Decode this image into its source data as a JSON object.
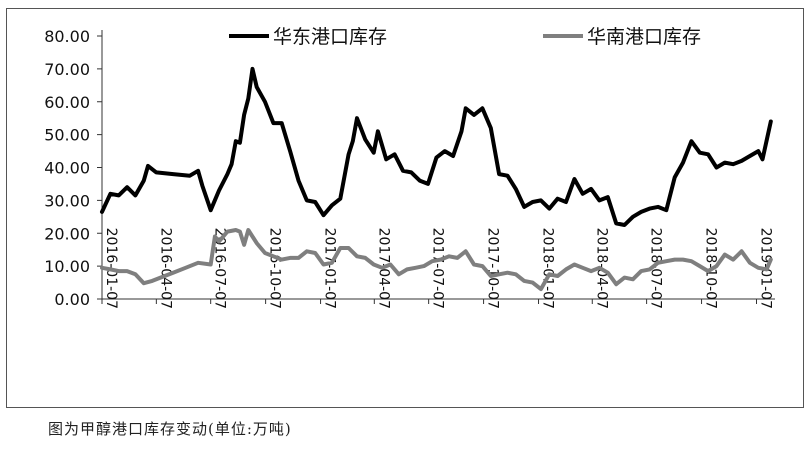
{
  "caption": "图为甲醇港口库存变动(单位:万吨)",
  "chart_data": {
    "type": "line",
    "title": "",
    "xlabel": "",
    "ylabel": "",
    "ylim": [
      0,
      80
    ],
    "y_ticks": [
      "0.00",
      "10.00",
      "20.00",
      "30.00",
      "40.00",
      "50.00",
      "60.00",
      "70.00",
      "80.00"
    ],
    "x_ticks": [
      "2016-01-07",
      "2016-04-07",
      "2016-07-07",
      "2016-10-07",
      "2017-01-07",
      "2017-04-07",
      "2017-07-07",
      "2017-10-07",
      "2018-01-07",
      "2018-04-07",
      "2018-07-07",
      "2018-10-07",
      "2019-01-07"
    ],
    "x_range": [
      "2016-01-07",
      "2019-02-07"
    ],
    "grid": false,
    "legend_position": "top",
    "series": [
      {
        "name": "华东港口库存",
        "color": "#000000",
        "points": [
          [
            "2016-01-07",
            26.5
          ],
          [
            "2016-01-21",
            32.0
          ],
          [
            "2016-02-04",
            31.5
          ],
          [
            "2016-02-18",
            34.0
          ],
          [
            "2016-03-03",
            31.5
          ],
          [
            "2016-03-17",
            36.0
          ],
          [
            "2016-03-24",
            40.5
          ],
          [
            "2016-04-07",
            38.5
          ],
          [
            "2016-05-05",
            38.0
          ],
          [
            "2016-06-02",
            37.5
          ],
          [
            "2016-06-16",
            39.0
          ],
          [
            "2016-06-23",
            34.5
          ],
          [
            "2016-07-07",
            27.0
          ],
          [
            "2016-07-21",
            33.0
          ],
          [
            "2016-08-04",
            38.0
          ],
          [
            "2016-08-11",
            41.0
          ],
          [
            "2016-08-18",
            48.0
          ],
          [
            "2016-08-25",
            47.5
          ],
          [
            "2016-09-01",
            56.0
          ],
          [
            "2016-09-08",
            61.0
          ],
          [
            "2016-09-15",
            70.0
          ],
          [
            "2016-09-22",
            64.5
          ],
          [
            "2016-10-06",
            60.0
          ],
          [
            "2016-10-20",
            53.5
          ],
          [
            "2016-11-03",
            53.5
          ],
          [
            "2016-11-17",
            45.0
          ],
          [
            "2016-12-01",
            36.0
          ],
          [
            "2016-12-15",
            30.0
          ],
          [
            "2016-12-29",
            29.5
          ],
          [
            "2017-01-12",
            25.5
          ],
          [
            "2017-01-26",
            28.5
          ],
          [
            "2017-02-09",
            30.5
          ],
          [
            "2017-02-23",
            44.0
          ],
          [
            "2017-03-02",
            48.0
          ],
          [
            "2017-03-09",
            55.0
          ],
          [
            "2017-03-23",
            48.5
          ],
          [
            "2017-04-06",
            44.5
          ],
          [
            "2017-04-13",
            51.0
          ],
          [
            "2017-04-27",
            42.5
          ],
          [
            "2017-05-11",
            44.0
          ],
          [
            "2017-05-25",
            39.0
          ],
          [
            "2017-06-08",
            38.5
          ],
          [
            "2017-06-22",
            36.0
          ],
          [
            "2017-07-06",
            35.0
          ],
          [
            "2017-07-20",
            43.0
          ],
          [
            "2017-08-03",
            45.0
          ],
          [
            "2017-08-17",
            43.5
          ],
          [
            "2017-08-31",
            51.0
          ],
          [
            "2017-09-07",
            58.0
          ],
          [
            "2017-09-21",
            56.0
          ],
          [
            "2017-10-05",
            58.0
          ],
          [
            "2017-10-19",
            52.0
          ],
          [
            "2017-11-02",
            38.0
          ],
          [
            "2017-11-16",
            37.5
          ],
          [
            "2017-11-30",
            33.5
          ],
          [
            "2017-12-14",
            28.0
          ],
          [
            "2017-12-28",
            29.5
          ],
          [
            "2018-01-11",
            30.0
          ],
          [
            "2018-01-25",
            27.5
          ],
          [
            "2018-02-08",
            30.5
          ],
          [
            "2018-02-22",
            29.5
          ],
          [
            "2018-03-08",
            36.5
          ],
          [
            "2018-03-22",
            32.0
          ],
          [
            "2018-04-05",
            33.5
          ],
          [
            "2018-04-19",
            30.0
          ],
          [
            "2018-05-03",
            31.0
          ],
          [
            "2018-05-17",
            23.0
          ],
          [
            "2018-05-31",
            22.5
          ],
          [
            "2018-06-14",
            25.0
          ],
          [
            "2018-06-28",
            26.5
          ],
          [
            "2018-07-12",
            27.5
          ],
          [
            "2018-07-26",
            28.0
          ],
          [
            "2018-08-09",
            27.0
          ],
          [
            "2018-08-23",
            37.0
          ],
          [
            "2018-09-06",
            41.5
          ],
          [
            "2018-09-20",
            48.0
          ],
          [
            "2018-10-04",
            44.5
          ],
          [
            "2018-10-18",
            44.0
          ],
          [
            "2018-11-01",
            40.0
          ],
          [
            "2018-11-15",
            41.5
          ],
          [
            "2018-11-29",
            41.0
          ],
          [
            "2018-12-13",
            42.0
          ],
          [
            "2018-12-27",
            43.5
          ],
          [
            "2019-01-10",
            45.0
          ],
          [
            "2019-01-17",
            42.5
          ],
          [
            "2019-01-31",
            54.0
          ]
        ]
      },
      {
        "name": "华南港口库存",
        "color": "#7f7f7f",
        "points": [
          [
            "2016-01-07",
            9.5
          ],
          [
            "2016-01-21",
            9.0
          ],
          [
            "2016-02-04",
            8.5
          ],
          [
            "2016-02-18",
            8.5
          ],
          [
            "2016-03-03",
            7.5
          ],
          [
            "2016-03-17",
            4.8
          ],
          [
            "2016-03-31",
            5.5
          ],
          [
            "2016-04-14",
            6.5
          ],
          [
            "2016-05-05",
            8.0
          ],
          [
            "2016-05-26",
            9.5
          ],
          [
            "2016-06-16",
            11.0
          ],
          [
            "2016-07-07",
            10.5
          ],
          [
            "2016-07-14",
            19.0
          ],
          [
            "2016-07-21",
            17.5
          ],
          [
            "2016-08-04",
            20.5
          ],
          [
            "2016-08-18",
            21.0
          ],
          [
            "2016-08-25",
            20.5
          ],
          [
            "2016-09-01",
            16.5
          ],
          [
            "2016-09-08",
            21.0
          ],
          [
            "2016-09-22",
            17.0
          ],
          [
            "2016-10-06",
            14.0
          ],
          [
            "2016-10-20",
            13.0
          ],
          [
            "2016-11-03",
            12.0
          ],
          [
            "2016-11-17",
            12.5
          ],
          [
            "2016-12-01",
            12.5
          ],
          [
            "2016-12-15",
            14.5
          ],
          [
            "2016-12-29",
            14.0
          ],
          [
            "2017-01-12",
            10.5
          ],
          [
            "2017-01-26",
            11.0
          ],
          [
            "2017-02-09",
            15.5
          ],
          [
            "2017-02-23",
            15.5
          ],
          [
            "2017-03-09",
            13.0
          ],
          [
            "2017-03-23",
            12.5
          ],
          [
            "2017-04-06",
            10.5
          ],
          [
            "2017-04-20",
            9.5
          ],
          [
            "2017-05-04",
            10.5
          ],
          [
            "2017-05-18",
            7.5
          ],
          [
            "2017-06-01",
            9.0
          ],
          [
            "2017-06-15",
            9.5
          ],
          [
            "2017-06-29",
            10.0
          ],
          [
            "2017-07-13",
            11.5
          ],
          [
            "2017-07-27",
            12.0
          ],
          [
            "2017-08-10",
            13.0
          ],
          [
            "2017-08-24",
            12.5
          ],
          [
            "2017-09-07",
            14.5
          ],
          [
            "2017-09-21",
            10.5
          ],
          [
            "2017-10-05",
            10.0
          ],
          [
            "2017-10-19",
            7.0
          ],
          [
            "2017-11-02",
            7.5
          ],
          [
            "2017-11-16",
            8.0
          ],
          [
            "2017-11-30",
            7.5
          ],
          [
            "2017-12-14",
            5.5
          ],
          [
            "2017-12-28",
            5.0
          ],
          [
            "2018-01-11",
            3.0
          ],
          [
            "2018-01-25",
            7.5
          ],
          [
            "2018-02-08",
            7.0
          ],
          [
            "2018-02-22",
            9.0
          ],
          [
            "2018-03-08",
            10.5
          ],
          [
            "2018-03-22",
            9.5
          ],
          [
            "2018-04-05",
            8.5
          ],
          [
            "2018-04-19",
            9.5
          ],
          [
            "2018-05-03",
            8.0
          ],
          [
            "2018-05-17",
            4.5
          ],
          [
            "2018-05-31",
            6.5
          ],
          [
            "2018-06-14",
            6.0
          ],
          [
            "2018-06-28",
            8.5
          ],
          [
            "2018-07-12",
            9.0
          ],
          [
            "2018-07-26",
            11.0
          ],
          [
            "2018-08-09",
            11.5
          ],
          [
            "2018-08-23",
            12.0
          ],
          [
            "2018-09-06",
            12.0
          ],
          [
            "2018-09-20",
            11.5
          ],
          [
            "2018-10-04",
            10.0
          ],
          [
            "2018-10-18",
            8.5
          ],
          [
            "2018-11-01",
            10.0
          ],
          [
            "2018-11-15",
            13.5
          ],
          [
            "2018-11-29",
            12.0
          ],
          [
            "2018-12-13",
            14.5
          ],
          [
            "2018-12-27",
            11.0
          ],
          [
            "2019-01-10",
            9.5
          ],
          [
            "2019-01-24",
            9.0
          ],
          [
            "2019-01-31",
            12.0
          ]
        ]
      }
    ]
  }
}
